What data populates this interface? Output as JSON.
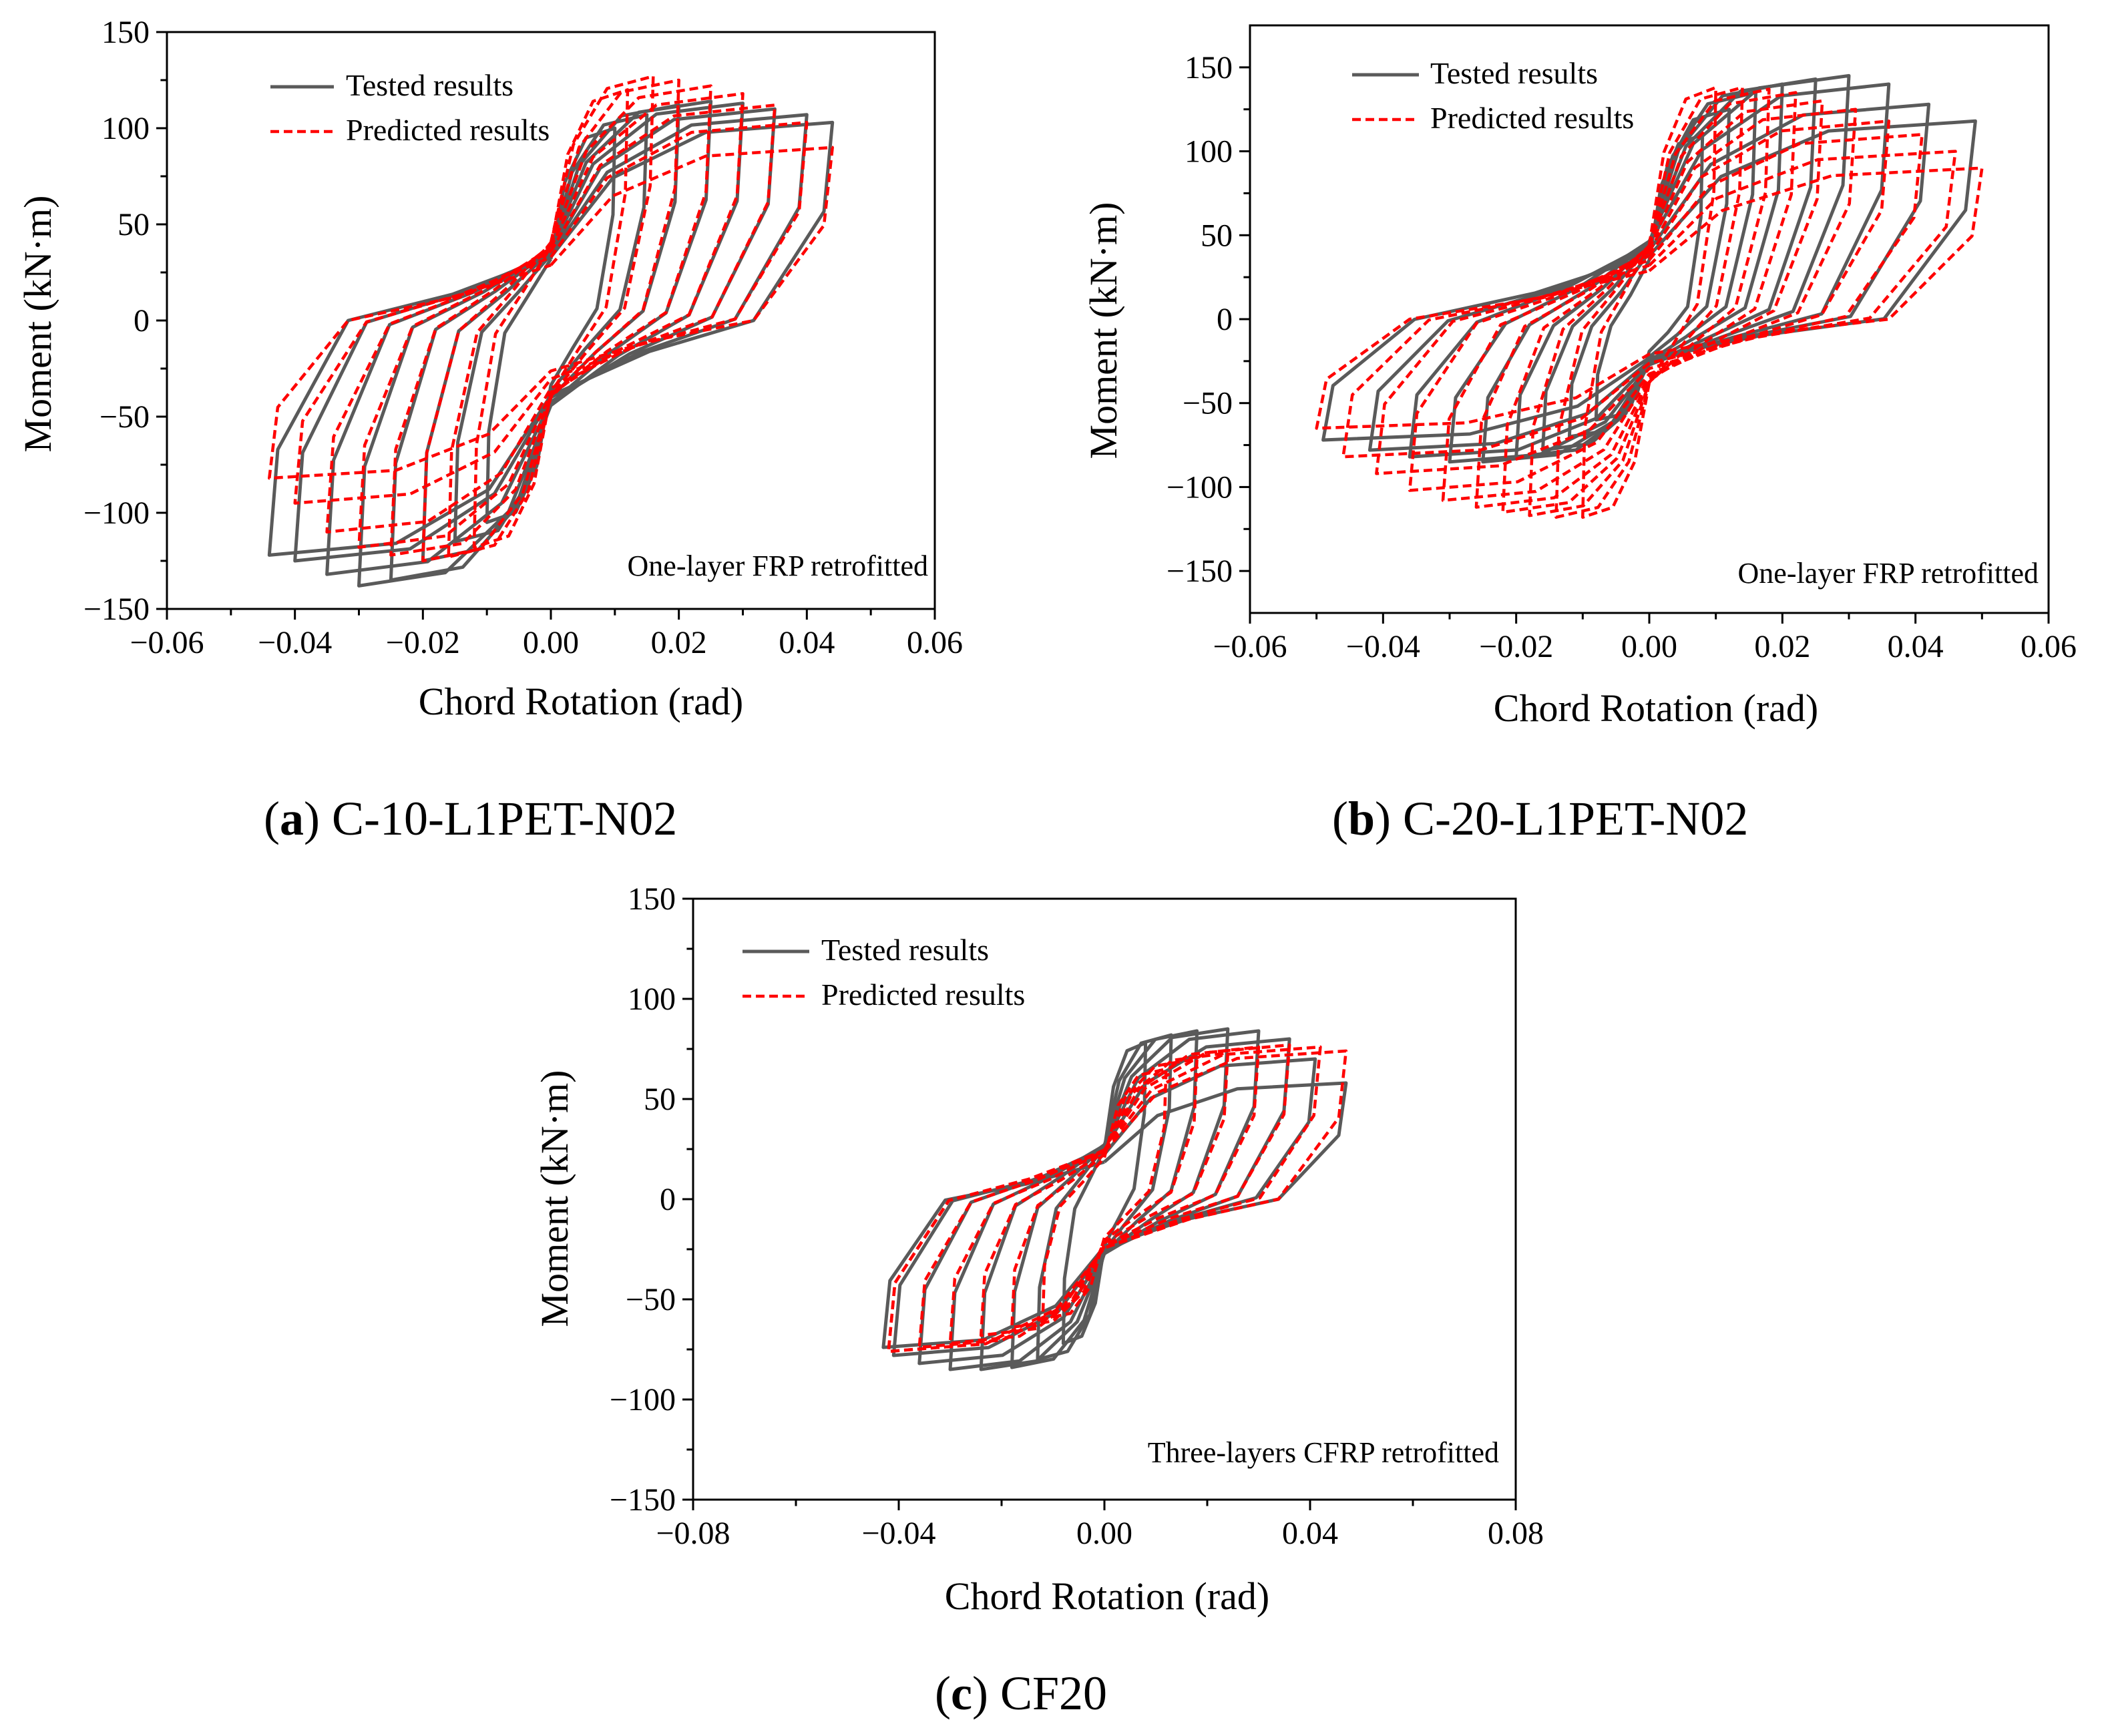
{
  "colors": {
    "tested": "#5a5a5a",
    "predicted": "#ff0000",
    "axis": "#000000",
    "background": "#ffffff"
  },
  "chart_data": [
    {
      "id": "a",
      "type": "line",
      "xlabel": "Chord Rotation (rad)",
      "ylabel": "Moment (kN·m)",
      "xlim": [
        -0.06,
        0.06
      ],
      "ylim": [
        -150,
        150
      ],
      "xticks": [
        -0.06,
        -0.04,
        -0.02,
        0.0,
        0.02,
        0.04,
        0.06
      ],
      "xtick_labels": [
        "−0.06",
        "−0.04",
        "−0.02",
        "0.00",
        "0.02",
        "0.04",
        "0.06"
      ],
      "yticks": [
        -150,
        -100,
        -50,
        0,
        50,
        100,
        150
      ],
      "ytick_labels": [
        "−150",
        "−100",
        "−50",
        "0",
        "50",
        "100",
        "150"
      ],
      "legend": [
        "Tested results",
        "Predicted results"
      ],
      "annotation": "One-layer FRP retrofitted",
      "caption_letter": "a",
      "caption_text": " C-10-L1PET-N02",
      "series": [
        {
          "name": "Tested results",
          "style": "solid",
          "cycles": [
            {
              "xmax": 0.01,
              "ypos": 100,
              "xmin": -0.01,
              "yneg": -105
            },
            {
              "xmax": 0.015,
              "ypos": 107,
              "xmin": -0.015,
              "yneg": -115
            },
            {
              "xmax": 0.02,
              "ypos": 112,
              "xmin": -0.02,
              "yneg": -125
            },
            {
              "xmax": 0.025,
              "ypos": 114,
              "xmin": -0.025,
              "yneg": -135
            },
            {
              "xmax": 0.03,
              "ypos": 113,
              "xmin": -0.03,
              "yneg": -138
            },
            {
              "xmax": 0.035,
              "ypos": 110,
              "xmin": -0.035,
              "yneg": -132
            },
            {
              "xmax": 0.04,
              "ypos": 107,
              "xmin": -0.04,
              "yneg": -125
            },
            {
              "xmax": 0.044,
              "ypos": 103,
              "xmin": -0.044,
              "yneg": -122
            }
          ]
        },
        {
          "name": "Predicted results",
          "style": "dashed",
          "cycles": [
            {
              "xmax": 0.012,
              "ypos": 120,
              "xmin": -0.012,
              "yneg": -118
            },
            {
              "xmax": 0.016,
              "ypos": 127,
              "xmin": -0.016,
              "yneg": -123
            },
            {
              "xmax": 0.02,
              "ypos": 125,
              "xmin": -0.02,
              "yneg": -125
            },
            {
              "xmax": 0.025,
              "ypos": 122,
              "xmin": -0.025,
              "yneg": -122
            },
            {
              "xmax": 0.03,
              "ypos": 118,
              "xmin": -0.03,
              "yneg": -118
            },
            {
              "xmax": 0.035,
              "ypos": 112,
              "xmin": -0.035,
              "yneg": -110
            },
            {
              "xmax": 0.04,
              "ypos": 103,
              "xmin": -0.04,
              "yneg": -95
            },
            {
              "xmax": 0.044,
              "ypos": 90,
              "xmin": -0.044,
              "yneg": -82
            }
          ]
        }
      ]
    },
    {
      "id": "b",
      "type": "line",
      "xlabel": "Chord Rotation (rad)",
      "ylabel": "Moment (kN·m)",
      "xlim": [
        -0.06,
        0.06
      ],
      "ylim": [
        -175,
        175
      ],
      "xticks": [
        -0.06,
        -0.04,
        -0.02,
        0.0,
        0.02,
        0.04,
        0.06
      ],
      "xtick_labels": [
        "−0.06",
        "−0.04",
        "−0.02",
        "0.00",
        "0.02",
        "0.04",
        "0.06"
      ],
      "yticks": [
        -150,
        -100,
        -50,
        0,
        50,
        100,
        150
      ],
      "ytick_labels": [
        "−150",
        "−100",
        "−50",
        "0",
        "50",
        "100",
        "150"
      ],
      "legend": [
        "Tested results",
        "Predicted results"
      ],
      "annotation": "One-layer FRP retrofitted",
      "caption_letter": "b",
      "caption_text": " C-20-L1PET-N02",
      "series": [
        {
          "name": "Tested results",
          "style": "solid",
          "cycles": [
            {
              "xmax": 0.008,
              "ypos": 110,
              "xmin": -0.008,
              "yneg": -60
            },
            {
              "xmax": 0.012,
              "ypos": 125,
              "xmin": -0.012,
              "yneg": -70
            },
            {
              "xmax": 0.016,
              "ypos": 135,
              "xmin": -0.016,
              "yneg": -78
            },
            {
              "xmax": 0.02,
              "ypos": 140,
              "xmin": -0.02,
              "yneg": -82
            },
            {
              "xmax": 0.025,
              "ypos": 143,
              "xmin": -0.025,
              "yneg": -85
            },
            {
              "xmax": 0.03,
              "ypos": 145,
              "xmin": -0.03,
              "yneg": -85
            },
            {
              "xmax": 0.036,
              "ypos": 140,
              "xmin": -0.036,
              "yneg": -82
            },
            {
              "xmax": 0.042,
              "ypos": 128,
              "xmin": -0.042,
              "yneg": -78
            },
            {
              "xmax": 0.049,
              "ypos": 118,
              "xmin": -0.049,
              "yneg": -72
            }
          ]
        },
        {
          "name": "Predicted results",
          "style": "dashed",
          "cycles": [
            {
              "xmax": 0.01,
              "ypos": 138,
              "xmin": -0.01,
              "yneg": -118
            },
            {
              "xmax": 0.014,
              "ypos": 138,
              "xmin": -0.014,
              "yneg": -118
            },
            {
              "xmax": 0.018,
              "ypos": 137,
              "xmin": -0.018,
              "yneg": -117
            },
            {
              "xmax": 0.022,
              "ypos": 135,
              "xmin": -0.022,
              "yneg": -115
            },
            {
              "xmax": 0.026,
              "ypos": 130,
              "xmin": -0.026,
              "yneg": -112
            },
            {
              "xmax": 0.031,
              "ypos": 125,
              "xmin": -0.031,
              "yneg": -108
            },
            {
              "xmax": 0.036,
              "ypos": 118,
              "xmin": -0.036,
              "yneg": -102
            },
            {
              "xmax": 0.041,
              "ypos": 110,
              "xmin": -0.041,
              "yneg": -92
            },
            {
              "xmax": 0.046,
              "ypos": 100,
              "xmin": -0.046,
              "yneg": -82
            },
            {
              "xmax": 0.05,
              "ypos": 90,
              "xmin": -0.05,
              "yneg": -65
            }
          ]
        }
      ]
    },
    {
      "id": "c",
      "type": "line",
      "xlabel": "Chord Rotation (rad)",
      "ylabel": "Moment (kN·m)",
      "xlim": [
        -0.08,
        0.08
      ],
      "ylim": [
        -150,
        150
      ],
      "xticks": [
        -0.08,
        -0.04,
        0.0,
        0.04,
        0.08
      ],
      "xtick_labels": [
        "−0.08",
        "−0.04",
        "0.00",
        "0.04",
        "0.08"
      ],
      "yticks": [
        -150,
        -100,
        -50,
        0,
        50,
        100,
        150
      ],
      "ytick_labels": [
        "−150",
        "−100",
        "−50",
        "0",
        "50",
        "100",
        "150"
      ],
      "legend": [
        "Tested results",
        "Predicted results"
      ],
      "annotation": "Three-layers CFRP retrofitted",
      "caption_letter": "c",
      "caption_text": " CF20",
      "series": [
        {
          "name": "Tested results",
          "style": "solid",
          "cycles": [
            {
              "xmax": 0.008,
              "ypos": 78,
              "xmin": -0.008,
              "yneg": -72
            },
            {
              "xmax": 0.013,
              "ypos": 82,
              "xmin": -0.013,
              "yneg": -80
            },
            {
              "xmax": 0.018,
              "ypos": 84,
              "xmin": -0.018,
              "yneg": -84
            },
            {
              "xmax": 0.024,
              "ypos": 85,
              "xmin": -0.024,
              "yneg": -85
            },
            {
              "xmax": 0.03,
              "ypos": 84,
              "xmin": -0.03,
              "yneg": -85
            },
            {
              "xmax": 0.036,
              "ypos": 80,
              "xmin": -0.036,
              "yneg": -82
            },
            {
              "xmax": 0.041,
              "ypos": 70,
              "xmin": -0.041,
              "yneg": -78
            },
            {
              "xmax": 0.047,
              "ypos": 58,
              "xmin": -0.043,
              "yneg": -74
            }
          ]
        },
        {
          "name": "Predicted results",
          "style": "dashed",
          "cycles": [
            {
              "xmax": 0.012,
              "ypos": 65,
              "xmin": -0.012,
              "yneg": -60
            },
            {
              "xmax": 0.018,
              "ypos": 70,
              "xmin": -0.018,
              "yneg": -64
            },
            {
              "xmax": 0.024,
              "ypos": 73,
              "xmin": -0.024,
              "yneg": -68
            },
            {
              "xmax": 0.03,
              "ypos": 76,
              "xmin": -0.03,
              "yneg": -72
            },
            {
              "xmax": 0.036,
              "ypos": 77,
              "xmin": -0.036,
              "yneg": -74
            },
            {
              "xmax": 0.042,
              "ypos": 76,
              "xmin": -0.042,
              "yneg": -76
            },
            {
              "xmax": 0.047,
              "ypos": 74,
              "xmin": -0.042,
              "yneg": -76
            }
          ]
        }
      ]
    }
  ]
}
